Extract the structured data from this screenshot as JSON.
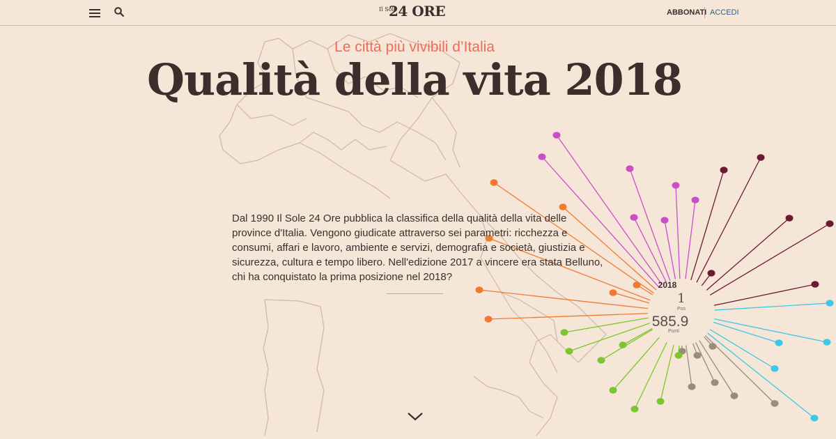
{
  "header": {
    "logo_small": "Il Sole",
    "logo_big": "24 ORE",
    "subscribe_label": "ABBONATI",
    "login_label": "ACCEDI",
    "icons": [
      "menu-icon",
      "search-icon"
    ]
  },
  "hero": {
    "kicker": "Le città più vivibili d’Italia",
    "title": "Qualità della vita 2018",
    "intro": "Dal 1990 Il Sole 24 Ore pubblica la classifica della qualità della vita delle province d'Italia. Vengono giudicate attraverso sei parametri: ricchezza e consumi, affari e lavoro, ambiente e servizi, demografia e società, giustizia e sicurezza, cultura e tempo libero. Nell'edizione 2017 a vincere era stata Belluno, chi ha conquistato la prima posizione nel 2018?"
  },
  "ranking_hub": {
    "year": "2018",
    "position": "1",
    "position_label": "Pos",
    "score": "585.9",
    "score_label": "Punti"
  },
  "colors": {
    "background": "#f6e6d8",
    "accent": "#ee6c58",
    "text": "#3a2f2c",
    "link": "#2b5f8e",
    "categories": [
      "#c94fc9",
      "#6b1a33",
      "#3cc8e6",
      "#9a8c78",
      "#7dc52e",
      "#f07a32"
    ]
  },
  "scroll_icon": "chevron-down-icon"
}
